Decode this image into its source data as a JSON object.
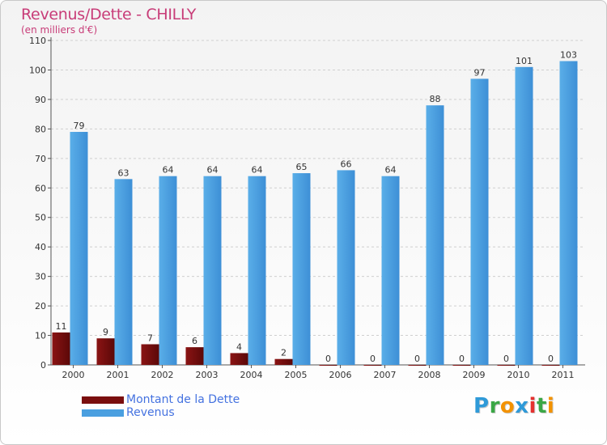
{
  "title": "Revenus/Dette - CHILLY",
  "subtitle": "(en milliers d'€)",
  "logo": {
    "letters": [
      "P",
      "r",
      "o",
      "x",
      "i",
      "t",
      "i"
    ],
    "colors": [
      "#2f9ad8",
      "#3aa745",
      "#f39200",
      "#2f9ad8",
      "#e5312f",
      "#3aa745",
      "#f39200"
    ]
  },
  "chart_data": {
    "type": "bar",
    "title": "Revenus/Dette - CHILLY",
    "ylabel": "(en milliers d'€)",
    "categories": [
      "2000",
      "2001",
      "2002",
      "2003",
      "2004",
      "2005",
      "2006",
      "2007",
      "2008",
      "2009",
      "2010",
      "2011"
    ],
    "ylim": [
      0,
      110
    ],
    "yticks": [
      0,
      10,
      20,
      30,
      40,
      50,
      60,
      70,
      80,
      90,
      100,
      110
    ],
    "grid": true,
    "legend": "bottom-left",
    "series": [
      {
        "name": "Montant de la Dette",
        "color": "#7a0e0e",
        "values": [
          11,
          9,
          7,
          6,
          4,
          2,
          0,
          0,
          0,
          0,
          0,
          0
        ]
      },
      {
        "name": "Revenus",
        "color": "#4a9fe0",
        "values": [
          79,
          63,
          64,
          64,
          64,
          65,
          66,
          64,
          88,
          97,
          101,
          103
        ]
      }
    ]
  }
}
